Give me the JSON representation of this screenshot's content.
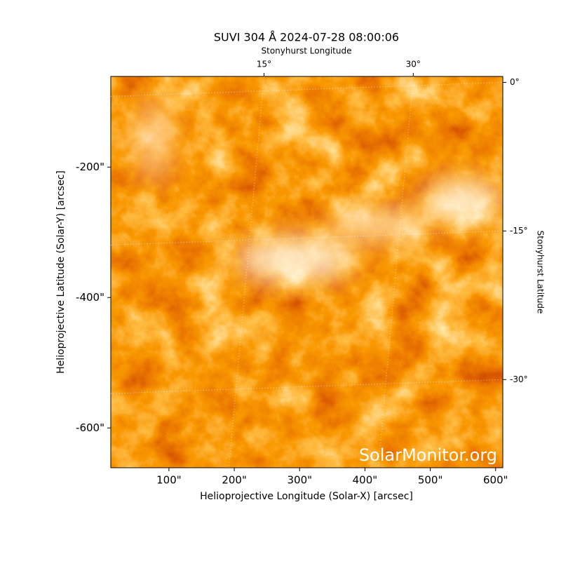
{
  "chart_data": {
    "type": "image",
    "title": "SUVI 304 Å 2024-07-28 08:00:06",
    "xlabel": "Helioprojective Longitude (Solar-X) [arcsec]",
    "ylabel": "Helioprojective Latitude (Solar-Y) [arcsec]",
    "x2label": "Stonyhurst Longitude",
    "y2label": "Stonyhurst Latitude",
    "watermark": "SolarMonitor.org",
    "xlim": [
      11,
      611
    ],
    "ylim": [
      -661,
      -61
    ],
    "xticks": [
      {
        "value": 100,
        "label": "100\""
      },
      {
        "value": 200,
        "label": "200\""
      },
      {
        "value": 300,
        "label": "300\""
      },
      {
        "value": 400,
        "label": "400\""
      },
      {
        "value": 500,
        "label": "500\""
      },
      {
        "value": 600,
        "label": "600\""
      }
    ],
    "yticks": [
      {
        "value": -200,
        "label": "-200\""
      },
      {
        "value": -400,
        "label": "-400\""
      },
      {
        "value": -600,
        "label": "-600\""
      }
    ],
    "x2lim": [
      -0.4,
      39
    ],
    "x2ticks": [
      {
        "value": 15,
        "label": "15°"
      },
      {
        "value": 30,
        "label": "30°"
      }
    ],
    "y2lim": [
      0.6,
      -38.9
    ],
    "y2ticks": [
      {
        "value": 0,
        "label": "0°"
      },
      {
        "value": -15,
        "label": "-15°"
      },
      {
        "value": -30,
        "label": "-30°"
      }
    ],
    "grid": true
  }
}
